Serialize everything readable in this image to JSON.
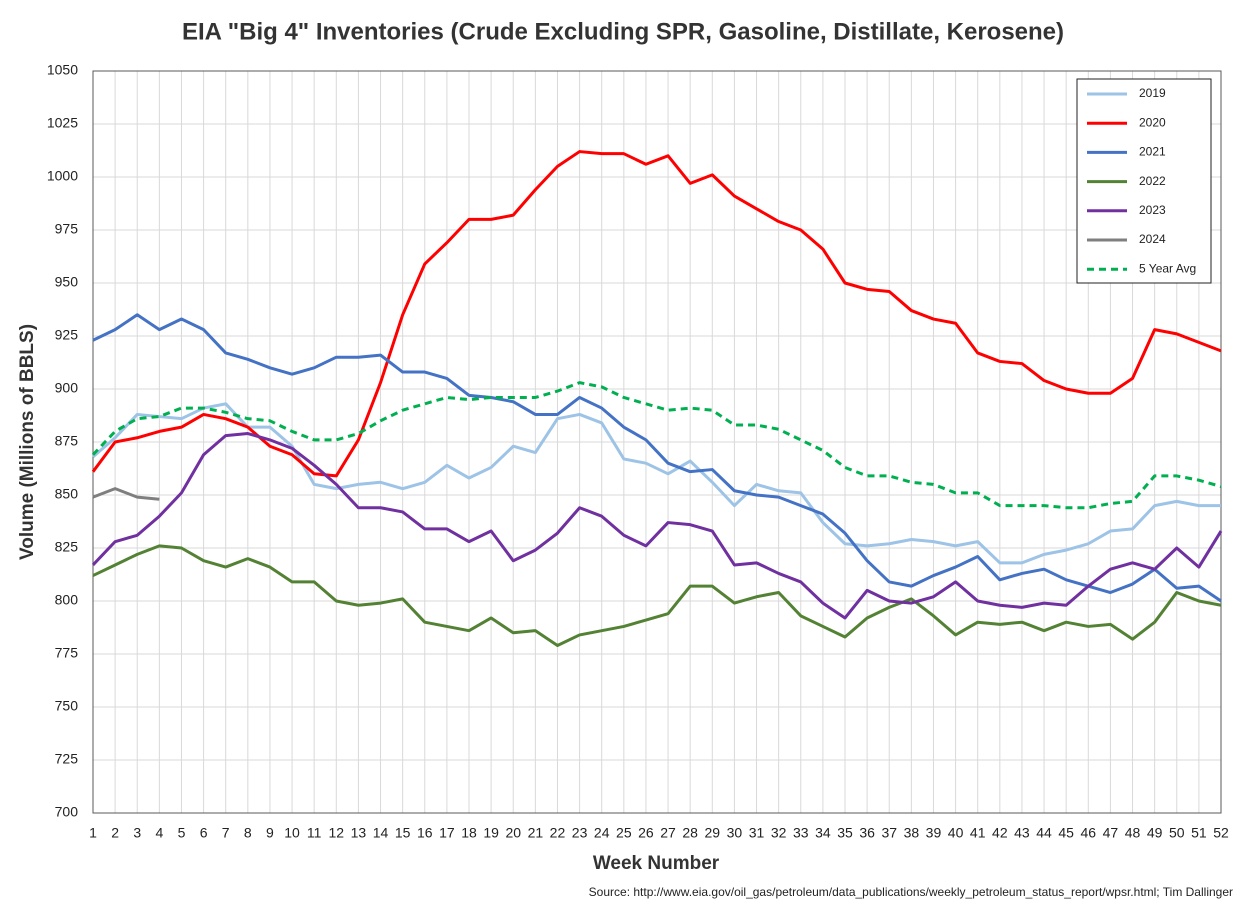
{
  "chart_data": {
    "type": "line",
    "title": "EIA \"Big 4\" Inventories (Crude Excluding SPR, Gasoline, Distillate, Kerosene)",
    "xlabel": "Week Number",
    "ylabel": "Volume (Millions of BBLS)",
    "source": "Source: http://www.eia.gov/oil_gas/petroleum/data_publications/weekly_petroleum_status_report/wpsr.html; Tim Dallinger",
    "x": [
      1,
      2,
      3,
      4,
      5,
      6,
      7,
      8,
      9,
      10,
      11,
      12,
      13,
      14,
      15,
      16,
      17,
      18,
      19,
      20,
      21,
      22,
      23,
      24,
      25,
      26,
      27,
      28,
      29,
      30,
      31,
      32,
      33,
      34,
      35,
      36,
      37,
      38,
      39,
      40,
      41,
      42,
      43,
      44,
      45,
      46,
      47,
      48,
      49,
      50,
      51,
      52
    ],
    "xlim": [
      1,
      52
    ],
    "xticks": [
      1,
      2,
      3,
      4,
      5,
      6,
      7,
      8,
      9,
      10,
      11,
      12,
      13,
      14,
      15,
      16,
      17,
      18,
      19,
      20,
      21,
      22,
      23,
      24,
      25,
      26,
      27,
      28,
      29,
      30,
      31,
      32,
      33,
      34,
      35,
      36,
      37,
      38,
      39,
      40,
      41,
      42,
      43,
      44,
      45,
      46,
      47,
      48,
      49,
      50,
      51,
      52
    ],
    "ylim": [
      700,
      1050
    ],
    "yticks": [
      700,
      725,
      750,
      775,
      800,
      825,
      850,
      875,
      900,
      925,
      950,
      975,
      1000,
      1025,
      1050
    ],
    "grid": true,
    "legend": "upper right",
    "series": [
      {
        "name": "2019",
        "color": "#9dc3e6",
        "values": [
          868,
          877,
          888,
          887,
          886,
          891,
          893,
          882,
          882,
          873,
          855,
          853,
          855,
          856,
          853,
          856,
          864,
          858,
          863,
          873,
          870,
          886,
          888,
          884,
          867,
          865,
          860,
          866,
          856,
          845,
          855,
          852,
          851,
          837,
          827,
          826,
          827,
          829,
          828,
          826,
          828,
          818,
          818,
          822,
          824,
          827,
          833,
          834,
          845,
          847,
          845,
          845
        ]
      },
      {
        "name": "2020",
        "color": "#ff0000",
        "values": [
          861,
          875,
          877,
          880,
          882,
          888,
          886,
          882,
          873,
          869,
          860,
          859,
          876,
          903,
          935,
          959,
          969,
          980,
          980,
          982,
          994,
          1005,
          1012,
          1011,
          1011,
          1006,
          1010,
          997,
          1001,
          991,
          985,
          979,
          975,
          966,
          950,
          947,
          946,
          937,
          933,
          931,
          917,
          913,
          912,
          904,
          900,
          898,
          898,
          905,
          928,
          926,
          922,
          918
        ]
      },
      {
        "name": "2021",
        "color": "#4472c4",
        "values": [
          923,
          928,
          935,
          928,
          933,
          928,
          917,
          914,
          910,
          907,
          910,
          915,
          915,
          916,
          908,
          908,
          905,
          897,
          896,
          894,
          888,
          888,
          896,
          891,
          882,
          876,
          865,
          861,
          862,
          852,
          850,
          849,
          845,
          841,
          832,
          819,
          809,
          807,
          812,
          816,
          821,
          810,
          813,
          815,
          810,
          807,
          804,
          808,
          815,
          806,
          807,
          800
        ]
      },
      {
        "name": "2022",
        "color": "#548235",
        "values": [
          812,
          817,
          822,
          826,
          825,
          819,
          816,
          820,
          816,
          809,
          809,
          800,
          798,
          799,
          801,
          790,
          788,
          786,
          792,
          785,
          786,
          779,
          784,
          786,
          788,
          791,
          794,
          807,
          807,
          799,
          802,
          804,
          793,
          788,
          783,
          792,
          797,
          801,
          793,
          784,
          790,
          789,
          790,
          786,
          790,
          788,
          789,
          782,
          790,
          804,
          800,
          798
        ]
      },
      {
        "name": "2023",
        "color": "#7030a0",
        "values": [
          817,
          828,
          831,
          840,
          851,
          869,
          878,
          879,
          876,
          872,
          864,
          855,
          844,
          844,
          842,
          834,
          834,
          828,
          833,
          819,
          824,
          832,
          844,
          840,
          831,
          826,
          837,
          836,
          833,
          817,
          818,
          813,
          809,
          799,
          792,
          805,
          800,
          799,
          802,
          809,
          800,
          798,
          797,
          799,
          798,
          807,
          815,
          818,
          815,
          825,
          816,
          833
        ]
      },
      {
        "name": "2024",
        "color": "#7f7f7f",
        "values": [
          849,
          853,
          849,
          848,
          null,
          null,
          null,
          null,
          null,
          null,
          null,
          null,
          null,
          null,
          null,
          null,
          null,
          null,
          null,
          null,
          null,
          null,
          null,
          null,
          null,
          null,
          null,
          null,
          null,
          null,
          null,
          null,
          null,
          null,
          null,
          null,
          null,
          null,
          null,
          null,
          null,
          null,
          null,
          null,
          null,
          null,
          null,
          null,
          null,
          null,
          null,
          null
        ]
      },
      {
        "name": "5 Year Avg",
        "color": "#00b050",
        "dashed": true,
        "values": [
          869,
          880,
          886,
          887,
          891,
          891,
          889,
          886,
          885,
          880,
          876,
          876,
          879,
          885,
          890,
          893,
          896,
          895,
          896,
          896,
          896,
          899,
          903,
          901,
          896,
          893,
          890,
          891,
          890,
          883,
          883,
          881,
          876,
          871,
          863,
          859,
          859,
          856,
          855,
          851,
          851,
          845,
          845,
          845,
          844,
          844,
          846,
          847,
          859,
          859,
          857,
          854
        ]
      }
    ]
  }
}
